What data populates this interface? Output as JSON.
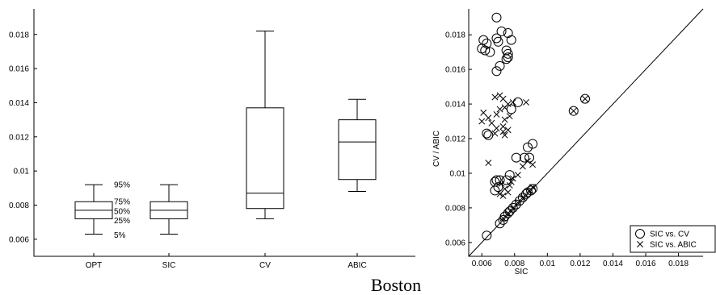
{
  "caption": "Boston",
  "chart_data": [
    {
      "type": "box",
      "categories": [
        "OPT",
        "SIC",
        "CV",
        "ABIC"
      ],
      "ylim": [
        0.005,
        0.0195
      ],
      "yticks": [
        0.006,
        0.008,
        0.01,
        0.012,
        0.014,
        0.016,
        0.018
      ],
      "ytick_labels": [
        "0.006",
        "0.008",
        "0.01",
        "0.012",
        "0.014",
        "0.016",
        "0.018"
      ],
      "boxes": [
        {
          "p5": 0.0063,
          "p25": 0.0072,
          "p50": 0.0077,
          "p75": 0.0082,
          "p95": 0.0092
        },
        {
          "p5": 0.0063,
          "p25": 0.0072,
          "p50": 0.0077,
          "p75": 0.0082,
          "p95": 0.0092
        },
        {
          "p5": 0.0072,
          "p25": 0.0078,
          "p50": 0.0087,
          "p75": 0.0137,
          "p95": 0.0182
        },
        {
          "p5": 0.0088,
          "p25": 0.0095,
          "p50": 0.0117,
          "p75": 0.013,
          "p95": 0.0142
        }
      ],
      "percentile_labels": [
        "95%",
        "75%",
        "50%",
        "25%",
        "5%"
      ],
      "grid": false
    },
    {
      "type": "scatter",
      "xlabel": "SIC",
      "ylabel": "CV / ABIC",
      "xlim": [
        0.0052,
        0.0195
      ],
      "ylim": [
        0.0052,
        0.0195
      ],
      "xticks": [
        0.006,
        0.008,
        0.01,
        0.012,
        0.014,
        0.016,
        0.018
      ],
      "xtick_labels": [
        "0.006",
        "0.008",
        "0.01",
        "0.012",
        "0.014",
        "0.016",
        "0.018"
      ],
      "yticks": [
        0.006,
        0.008,
        0.01,
        0.012,
        0.014,
        0.016,
        0.018
      ],
      "ytick_labels": [
        "0.006",
        "0.008",
        "0.01",
        "0.012",
        "0.014",
        "0.016",
        "0.018"
      ],
      "diagonal": true,
      "legend_position": "bottom-right",
      "grid": false,
      "series": [
        {
          "name": "SIC vs. CV",
          "marker": "circle",
          "points": [
            [
              0.0069,
              0.019
            ],
            [
              0.0072,
              0.0182
            ],
            [
              0.0069,
              0.0178
            ],
            [
              0.0076,
              0.0181
            ],
            [
              0.0078,
              0.0177
            ],
            [
              0.007,
              0.0176
            ],
            [
              0.0061,
              0.0177
            ],
            [
              0.0063,
              0.0175
            ],
            [
              0.006,
              0.0172
            ],
            [
              0.0062,
              0.0171
            ],
            [
              0.0065,
              0.017
            ],
            [
              0.0075,
              0.0171
            ],
            [
              0.0076,
              0.0169
            ],
            [
              0.0076,
              0.0167
            ],
            [
              0.0075,
              0.0166
            ],
            [
              0.0071,
              0.0162
            ],
            [
              0.0069,
              0.0159
            ],
            [
              0.0082,
              0.0141
            ],
            [
              0.0078,
              0.0137
            ],
            [
              0.0063,
              0.0123
            ],
            [
              0.0064,
              0.0122
            ],
            [
              0.0091,
              0.0117
            ],
            [
              0.0088,
              0.0115
            ],
            [
              0.0086,
              0.0109
            ],
            [
              0.0089,
              0.0109
            ],
            [
              0.0081,
              0.0109
            ],
            [
              0.0077,
              0.0099
            ],
            [
              0.0069,
              0.0096
            ],
            [
              0.0071,
              0.0096
            ],
            [
              0.0068,
              0.0095
            ],
            [
              0.0075,
              0.0096
            ],
            [
              0.007,
              0.0092
            ],
            [
              0.0068,
              0.009
            ],
            [
              0.0091,
              0.0091
            ],
            [
              0.009,
              0.009
            ],
            [
              0.0088,
              0.0089
            ],
            [
              0.0087,
              0.0088
            ],
            [
              0.0085,
              0.0086
            ],
            [
              0.0083,
              0.0084
            ],
            [
              0.0081,
              0.0082
            ],
            [
              0.0079,
              0.008
            ],
            [
              0.0077,
              0.0078
            ],
            [
              0.0076,
              0.0077
            ],
            [
              0.0074,
              0.0075
            ],
            [
              0.0073,
              0.0073
            ],
            [
              0.0071,
              0.0071
            ],
            [
              0.0063,
              0.0064
            ],
            [
              0.0116,
              0.0136
            ],
            [
              0.0123,
              0.0143
            ]
          ]
        },
        {
          "name": "SIC vs. ABIC",
          "marker": "x",
          "points": [
            [
              0.0071,
              0.0145
            ],
            [
              0.0068,
              0.0144
            ],
            [
              0.0073,
              0.0143
            ],
            [
              0.0079,
              0.0141
            ],
            [
              0.0087,
              0.0141
            ],
            [
              0.0076,
              0.014
            ],
            [
              0.0074,
              0.0138
            ],
            [
              0.0071,
              0.0137
            ],
            [
              0.0061,
              0.0135
            ],
            [
              0.0069,
              0.0134
            ],
            [
              0.0077,
              0.0133
            ],
            [
              0.0064,
              0.0132
            ],
            [
              0.0074,
              0.0131
            ],
            [
              0.006,
              0.013
            ],
            [
              0.0066,
              0.0129
            ],
            [
              0.0073,
              0.0127
            ],
            [
              0.0069,
              0.0126
            ],
            [
              0.0076,
              0.0125
            ],
            [
              0.0073,
              0.0124
            ],
            [
              0.0068,
              0.0123
            ],
            [
              0.0074,
              0.0122
            ],
            [
              0.0064,
              0.0106
            ],
            [
              0.0088,
              0.0107
            ],
            [
              0.0085,
              0.0104
            ],
            [
              0.0091,
              0.0105
            ],
            [
              0.0082,
              0.0099
            ],
            [
              0.0079,
              0.0097
            ],
            [
              0.0078,
              0.0095
            ],
            [
              0.0072,
              0.0094
            ],
            [
              0.0077,
              0.0093
            ],
            [
              0.0074,
              0.0091
            ],
            [
              0.0071,
              0.0088
            ],
            [
              0.0073,
              0.0087
            ],
            [
              0.0076,
              0.0089
            ],
            [
              0.0091,
              0.0092
            ],
            [
              0.0089,
              0.009
            ],
            [
              0.0085,
              0.0086
            ],
            [
              0.0082,
              0.0083
            ],
            [
              0.0079,
              0.008
            ],
            [
              0.0076,
              0.0077
            ],
            [
              0.0073,
              0.0074
            ],
            [
              0.0116,
              0.0136
            ],
            [
              0.0123,
              0.0143
            ]
          ]
        }
      ]
    }
  ]
}
